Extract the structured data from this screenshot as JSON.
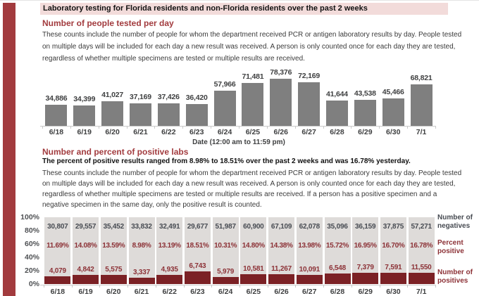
{
  "page": {
    "header": "Laboratory testing for Florida residents and non-Florida residents over the past 2 weeks"
  },
  "colors": {
    "accent_maroon": "#a23b3e",
    "header_pink": "#f2dbda",
    "tested_bar_gray": "#7f7f7f",
    "negatives_bar_gray": "#dedbd9",
    "positives_bar_maroon": "#7b2125",
    "maroon_text": "#8c3136",
    "dark_label": "#3f4041"
  },
  "section_tested": {
    "title": "Number of people tested per day",
    "description": "These counts include the number of people for whom the department received PCR or antigen laboratory results by day. People tested on multiple days will be included for each day a new result was received. A person is only counted once for each day they are tested, regardless of whether multiple specimens are tested or multiple results are received."
  },
  "section_positive": {
    "title": "Number and percent of positive labs",
    "highlight": "The percent of positive results ranged from 8.98% to 18.51% over the past 2 weeks and was 16.78% yesterday.",
    "description": "These counts include the number of people for whom the department received PCR or antigen laboratory results by day. People tested on multiple days will be included for each day a new result was received. A person is only counted once for each day they are tested, regardless of whether multiple specimens are tested or multiple results are received. If a person has a positive specimen and a negative specimen in the same day, only the positive result is counted."
  },
  "chart_data": [
    {
      "type": "bar",
      "title": "Number of people tested per day",
      "categories": [
        "6/18",
        "6/19",
        "6/20",
        "6/21",
        "6/22",
        "6/23",
        "6/24",
        "6/25",
        "6/26",
        "6/27",
        "6/28",
        "6/29",
        "6/30",
        "7/1"
      ],
      "values": [
        34886,
        34399,
        41027,
        37169,
        37426,
        36420,
        57966,
        71481,
        78376,
        72169,
        41644,
        43538,
        45466,
        68821
      ],
      "value_labels": [
        "34,886",
        "34,399",
        "41,027",
        "37,169",
        "37,426",
        "36,420",
        "57,966",
        "71,481",
        "78,376",
        "72,169",
        "41,644",
        "43,538",
        "45,466",
        "68,821"
      ],
      "xlabel": "Date (12:00 am to 11:59 pm)",
      "ylabel": "",
      "ylim": [
        0,
        78376
      ],
      "grid": false,
      "legend_position": "none"
    },
    {
      "type": "stacked-bar-100",
      "title": "Number and percent of positive labs",
      "categories": [
        "6/18",
        "6/19",
        "6/20",
        "6/21",
        "6/22",
        "6/23",
        "6/24",
        "6/25",
        "6/26",
        "6/27",
        "6/28",
        "6/29",
        "6/30",
        "7/1"
      ],
      "series": [
        {
          "name": "Number of negatives",
          "values": [
            30807,
            29557,
            35452,
            33832,
            32491,
            29677,
            51987,
            60900,
            67109,
            62078,
            35096,
            36159,
            37875,
            57271
          ],
          "labels": [
            "30,807",
            "29,557",
            "35,452",
            "33,832",
            "32,491",
            "29,677",
            "51,987",
            "60,900",
            "67,109",
            "62,078",
            "35,096",
            "36,159",
            "37,875",
            "57,271"
          ]
        },
        {
          "name": "Percent positive",
          "values": [
            11.69,
            14.08,
            13.59,
            8.98,
            13.19,
            18.51,
            10.31,
            14.8,
            14.38,
            13.98,
            15.72,
            16.95,
            16.7,
            16.78
          ],
          "labels": [
            "11.69%",
            "14.08%",
            "13.59%",
            "8.98%",
            "13.19%",
            "18.51%",
            "10.31%",
            "14.80%",
            "14.38%",
            "13.98%",
            "15.72%",
            "16.95%",
            "16.70%",
            "16.78%"
          ]
        },
        {
          "name": "Number of positives",
          "values": [
            4079,
            4842,
            5575,
            3337,
            4935,
            6743,
            5979,
            10581,
            11267,
            10091,
            6548,
            7379,
            7591,
            11550
          ],
          "labels": [
            "4,079",
            "4,842",
            "5,575",
            "3,337",
            "4,935",
            "6,743",
            "5,979",
            "10,581",
            "11,267",
            "10,091",
            "6,548",
            "7,379",
            "7,591",
            "11,550"
          ]
        }
      ],
      "y_ticks": [
        "100%",
        "80%",
        "60%",
        "40%",
        "20%",
        "0%"
      ],
      "ylim": [
        0,
        100
      ],
      "grid": false,
      "legend_position": "right"
    }
  ]
}
